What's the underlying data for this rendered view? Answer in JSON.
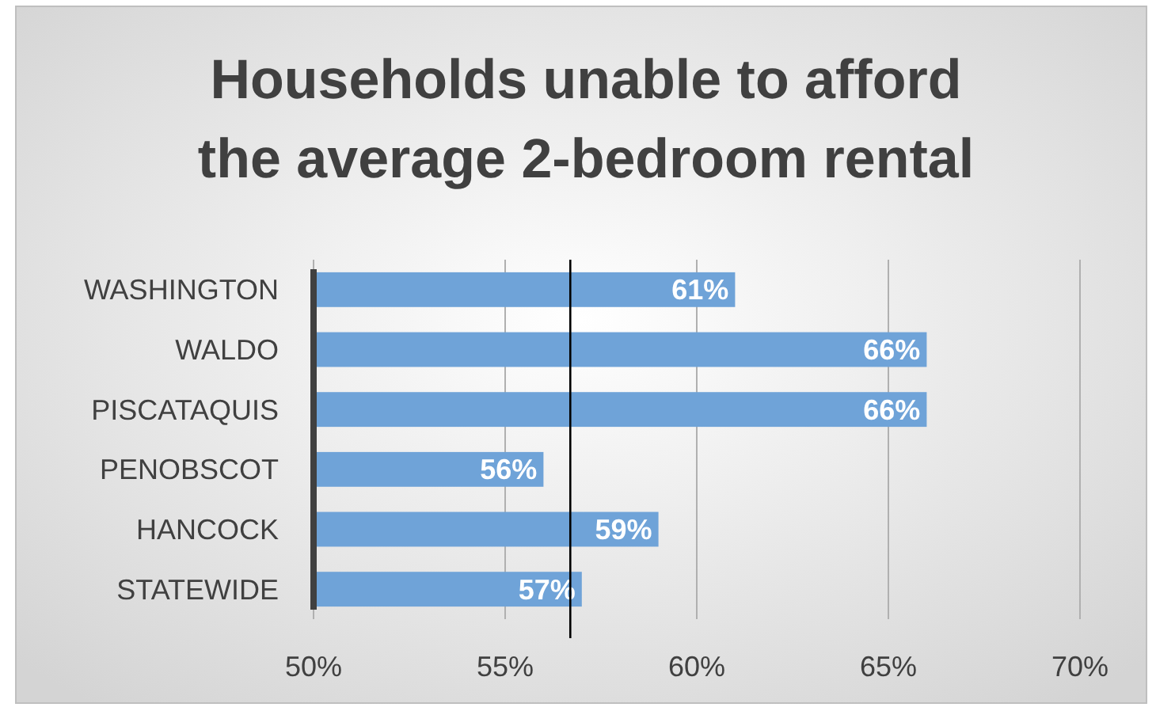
{
  "chart_data": {
    "type": "bar",
    "orientation": "horizontal",
    "title": "Households unable to afford the average 2-bedroom rental",
    "categories": [
      "WASHINGTON",
      "WALDO",
      "PISCATAQUIS",
      "PENOBSCOT",
      "HANCOCK",
      "STATEWIDE"
    ],
    "values": [
      61,
      66,
      66,
      56,
      59,
      57
    ],
    "color": "#6fa3d8",
    "value_labels": [
      "61%",
      "66%",
      "66%",
      "56%",
      "59%",
      "57%"
    ],
    "xlim": [
      50,
      70
    ],
    "xticks": [
      {
        "value": 50,
        "label": "50%"
      },
      {
        "value": 55,
        "label": "55%"
      },
      {
        "value": 60,
        "label": "60%"
      },
      {
        "value": 65,
        "label": "65%"
      },
      {
        "value": 70,
        "label": "70%"
      }
    ],
    "grid": "x",
    "ref_lines": [
      {
        "axis": "x",
        "value": 56.7,
        "color": "#000000"
      }
    ]
  }
}
